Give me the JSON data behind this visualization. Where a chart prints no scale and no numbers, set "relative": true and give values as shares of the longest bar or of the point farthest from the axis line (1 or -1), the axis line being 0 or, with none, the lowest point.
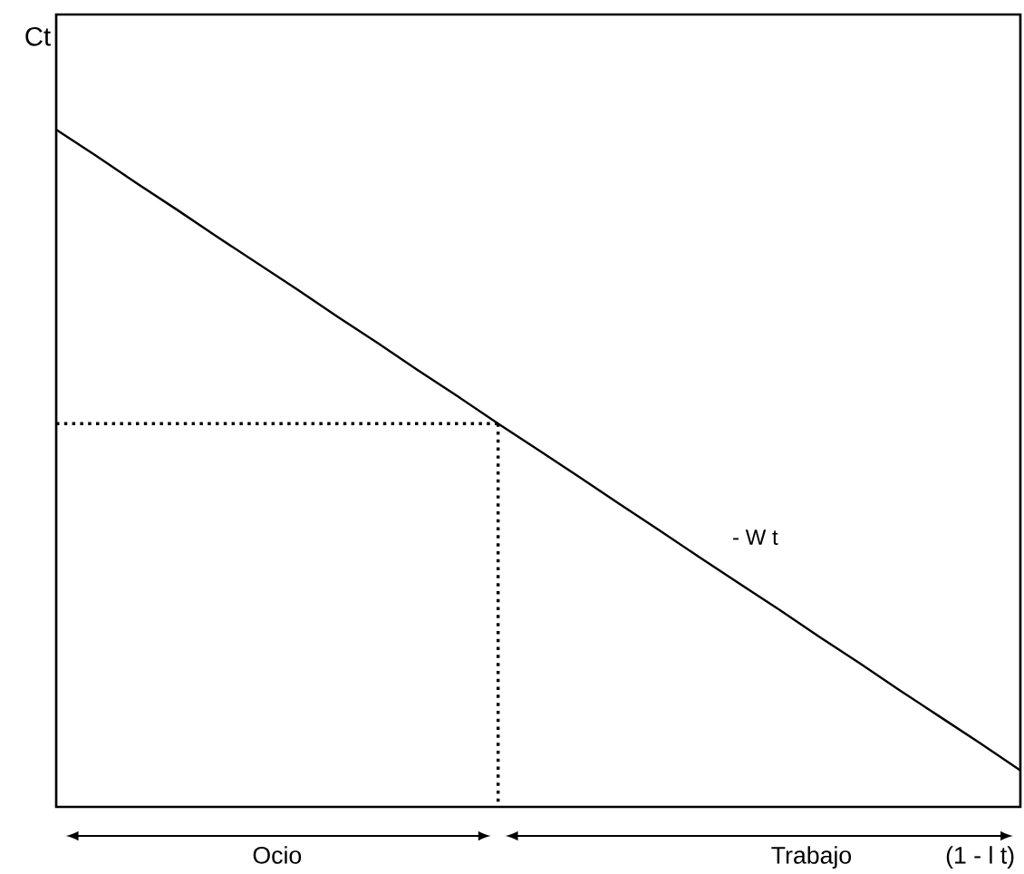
{
  "chart_data": {
    "type": "line",
    "relative": true,
    "ylabel": "Ct",
    "categories": [
      null,
      null,
      null,
      null,
      null,
      null,
      null,
      null,
      null,
      null,
      null,
      null,
      null,
      null,
      null,
      null,
      null,
      null,
      null,
      null,
      null,
      null,
      null,
      null,
      null
    ],
    "series": [
      {
        "color": "#000000",
        "values": [
          1,
          0.961,
          0.921,
          0.882,
          0.842,
          0.803,
          0.764,
          0.724,
          0.685,
          0.645,
          0.606,
          0.566,
          0.527,
          0.488,
          0.448,
          0.409,
          0.369,
          0.33,
          0.291,
          0.251,
          0.212,
          0.172,
          0.133,
          0.094,
          0.054
        ]
      },
      {
        "color": "#000000",
        "line_style": "dotted",
        "values": [
          0.566,
          null,
          null,
          null,
          null,
          null,
          null,
          null,
          null,
          null,
          null,
          0.566,
          null,
          null,
          null,
          null,
          null,
          null,
          null,
          null,
          null,
          null,
          null,
          null,
          null
        ]
      }
    ],
    "annotations": [
      "Ocio",
      "Trabajo",
      "(1 - l t)",
      "- W t"
    ],
    "marker": "none"
  }
}
